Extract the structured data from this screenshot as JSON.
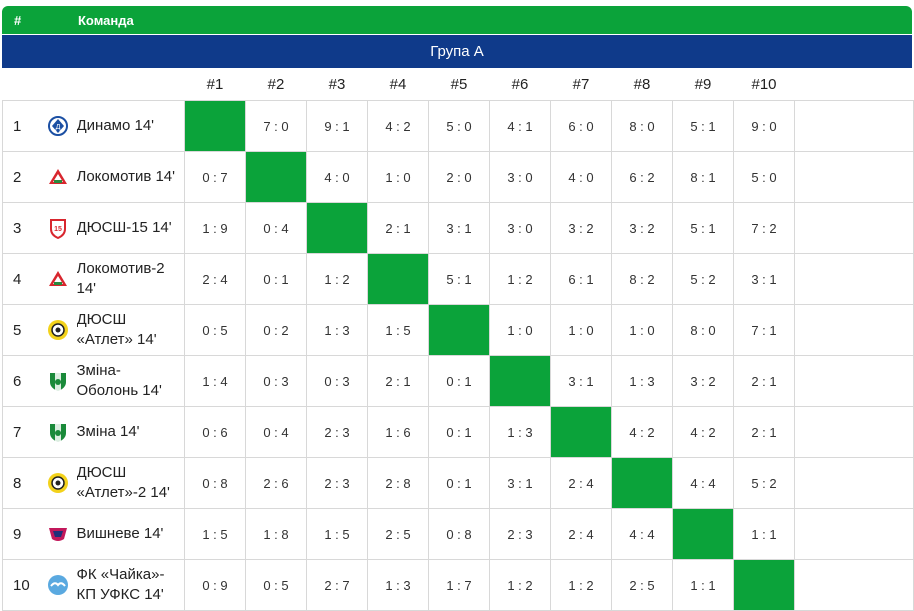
{
  "header": {
    "num_label": "#",
    "team_label": "Команда"
  },
  "group": {
    "title": "Група А"
  },
  "columns": [
    "#1",
    "#2",
    "#3",
    "#4",
    "#5",
    "#6",
    "#7",
    "#8",
    "#9",
    "#10"
  ],
  "teams": [
    {
      "num": "1",
      "name": "Динамо 14'",
      "logo": "dynamo-logo-icon",
      "scores": [
        "",
        "7 : 0",
        "9 : 1",
        "4 : 2",
        "5 : 0",
        "4 : 1",
        "6 : 0",
        "8 : 0",
        "5 : 1",
        "9 : 0"
      ]
    },
    {
      "num": "2",
      "name": "Локомотив 14'",
      "logo": "lokomotiv-logo-icon",
      "scores": [
        "0 : 7",
        "",
        "4 : 0",
        "1 : 0",
        "2 : 0",
        "3 : 0",
        "4 : 0",
        "6 : 2",
        "8 : 1",
        "5 : 0"
      ]
    },
    {
      "num": "3",
      "name": "ДЮСШ-15 14'",
      "logo": "dyussh15-logo-icon",
      "scores": [
        "1 : 9",
        "0 : 4",
        "",
        "2 : 1",
        "3 : 1",
        "3 : 0",
        "3 : 2",
        "3 : 2",
        "5 : 1",
        "7 : 2"
      ]
    },
    {
      "num": "4",
      "name": "Локомотив-2 14'",
      "logo": "lokomotiv-logo-icon",
      "scores": [
        "2 : 4",
        "0 : 1",
        "1 : 2",
        "",
        "5 : 1",
        "1 : 2",
        "6 : 1",
        "8 : 2",
        "5 : 2",
        "3 : 1"
      ]
    },
    {
      "num": "5",
      "name": "ДЮСШ «Атлет» 14'",
      "logo": "atlet-logo-icon",
      "scores": [
        "0 : 5",
        "0 : 2",
        "1 : 3",
        "1 : 5",
        "",
        "1 : 0",
        "1 : 0",
        "1 : 0",
        "8 : 0",
        "7 : 1"
      ]
    },
    {
      "num": "6",
      "name": "Зміна-Оболонь 14'",
      "logo": "zmina-logo-icon",
      "scores": [
        "1 : 4",
        "0 : 3",
        "0 : 3",
        "2 : 1",
        "0 : 1",
        "",
        "3 : 1",
        "1 : 3",
        "3 : 2",
        "2 : 1"
      ]
    },
    {
      "num": "7",
      "name": "Зміна 14'",
      "logo": "zmina-logo-icon",
      "scores": [
        "0 : 6",
        "0 : 4",
        "2 : 3",
        "1 : 6",
        "0 : 1",
        "1 : 3",
        "",
        "4 : 2",
        "4 : 2",
        "2 : 1"
      ]
    },
    {
      "num": "8",
      "name": "ДЮСШ «Атлет»-2 14'",
      "logo": "atlet-logo-icon",
      "scores": [
        "0 : 8",
        "2 : 6",
        "2 : 3",
        "2 : 8",
        "0 : 1",
        "3 : 1",
        "2 : 4",
        "",
        "4 : 4",
        "5 : 2"
      ]
    },
    {
      "num": "9",
      "name": "Вишневе 14'",
      "logo": "vyshneve-logo-icon",
      "scores": [
        "1 : 5",
        "1 : 8",
        "1 : 5",
        "2 : 5",
        "0 : 8",
        "2 : 3",
        "2 : 4",
        "4 : 4",
        "",
        "1 : 1"
      ]
    },
    {
      "num": "10",
      "name": "ФК «Чайка»-КП УФКС 14'",
      "logo": "chaika-logo-icon",
      "scores": [
        "0 : 9",
        "0 : 5",
        "2 : 7",
        "1 : 3",
        "1 : 7",
        "1 : 2",
        "1 : 2",
        "2 : 5",
        "1 : 1",
        ""
      ]
    }
  ],
  "colors": {
    "green": "#0ba33a",
    "blue": "#0f3a8a"
  }
}
